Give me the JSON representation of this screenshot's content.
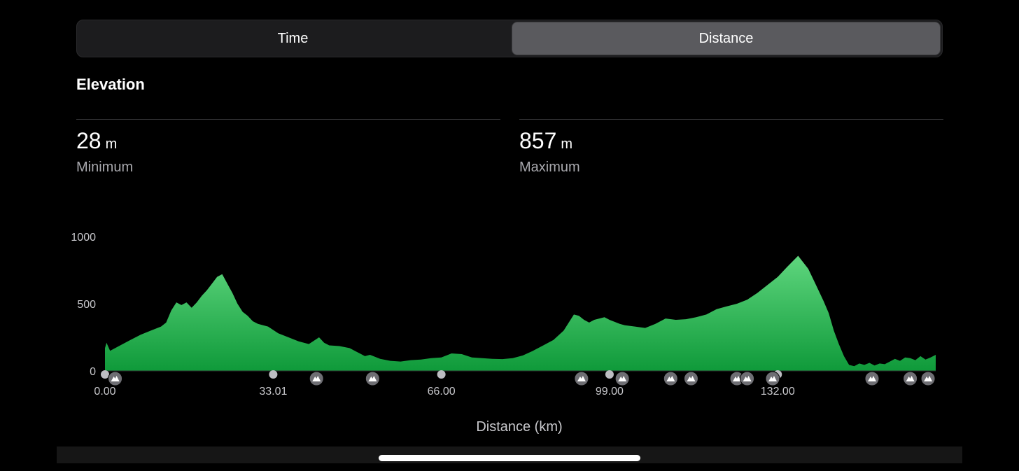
{
  "segmented_control": {
    "options": [
      {
        "label": "Time",
        "selected": false
      },
      {
        "label": "Distance",
        "selected": true
      }
    ]
  },
  "section": {
    "title": "Elevation"
  },
  "stats": {
    "minimum": {
      "value": "28",
      "unit": "m",
      "label": "Minimum"
    },
    "maximum": {
      "value": "857",
      "unit": "m",
      "label": "Maximum"
    }
  },
  "colors": {
    "fill_top": "#5fd67e",
    "fill_bottom": "#0f9a3a",
    "marker": "#6e6e73",
    "dot": "#bdbdc2"
  },
  "chart_data": {
    "type": "area",
    "xlabel": "Distance (km)",
    "ylabel": "",
    "xlim": [
      0,
      163
    ],
    "ylim": [
      0,
      1000
    ],
    "x_ticks": [
      "0.00",
      "33.01",
      "66.00",
      "99.00",
      "132.00"
    ],
    "x_tick_values": [
      0,
      33.01,
      66,
      99,
      132
    ],
    "y_ticks": [
      "0",
      "500",
      "1000"
    ],
    "y_tick_values": [
      0,
      500,
      1000
    ],
    "series": [
      {
        "x": [
          0,
          0.3,
          1,
          3,
          5,
          7,
          9,
          11,
          12,
          13,
          14,
          15,
          16,
          17,
          18,
          19,
          20,
          21,
          22,
          23,
          24,
          25,
          26,
          27,
          28,
          29,
          30,
          32,
          34,
          36,
          38,
          40,
          42,
          43,
          44,
          46,
          48,
          50,
          51,
          52,
          54,
          56,
          58,
          60,
          62,
          64,
          66,
          68,
          70,
          72,
          74,
          76,
          78,
          80,
          82,
          84,
          86,
          88,
          90,
          92,
          93,
          94,
          95,
          96,
          97,
          98,
          99,
          100,
          101,
          102,
          104,
          106,
          108,
          110,
          112,
          114,
          116,
          118,
          120,
          122,
          124,
          126,
          128,
          130,
          132,
          134,
          136,
          138,
          139,
          140,
          141,
          142,
          143,
          144,
          145,
          146,
          147,
          148,
          149,
          150,
          151,
          152,
          153,
          154,
          155,
          156,
          157,
          158,
          159,
          160,
          161,
          162,
          163
        ],
        "y": [
          170,
          210,
          150,
          190,
          230,
          270,
          300,
          330,
          360,
          450,
          510,
          490,
          510,
          470,
          510,
          560,
          600,
          650,
          700,
          720,
          650,
          580,
          500,
          440,
          410,
          370,
          350,
          330,
          280,
          250,
          220,
          200,
          250,
          210,
          190,
          185,
          170,
          130,
          110,
          120,
          90,
          75,
          70,
          80,
          85,
          95,
          100,
          130,
          125,
          100,
          95,
          90,
          88,
          95,
          115,
          150,
          190,
          230,
          300,
          420,
          410,
          380,
          360,
          380,
          390,
          400,
          380,
          365,
          350,
          340,
          330,
          320,
          350,
          390,
          380,
          385,
          400,
          420,
          460,
          480,
          500,
          530,
          580,
          640,
          700,
          780,
          857,
          760,
          680,
          600,
          520,
          430,
          300,
          200,
          110,
          45,
          35,
          55,
          45,
          60,
          40,
          55,
          50,
          70,
          90,
          75,
          100,
          95,
          80,
          110,
          85,
          100,
          120
        ]
      }
    ],
    "waypoints_km": [
      0,
      33.01,
      66,
      99,
      132
    ],
    "peak_markers_km": [
      2,
      41.5,
      52.5,
      93.5,
      101.5,
      111,
      115,
      124,
      126,
      131,
      150.5,
      158,
      161.5
    ]
  }
}
